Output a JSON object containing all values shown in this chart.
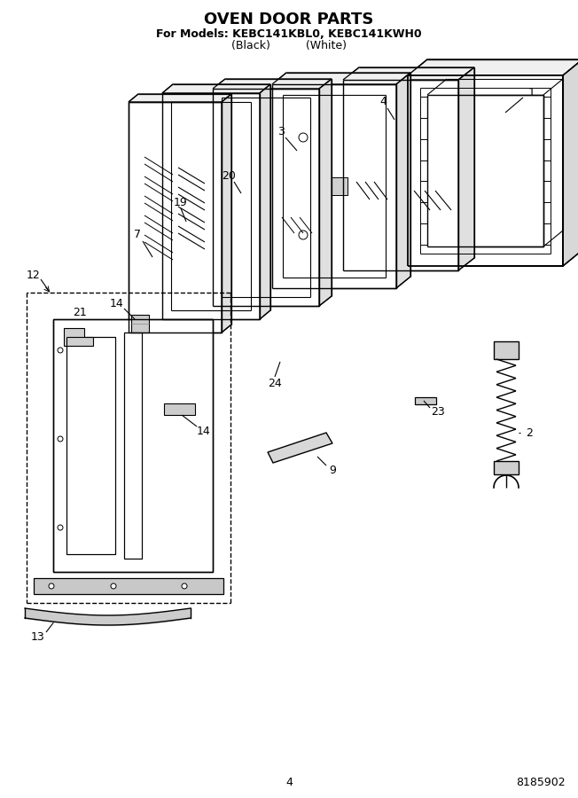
{
  "title": "OVEN DOOR PARTS",
  "subtitle1": "For Models: KEBC141KBL0, KEBC141KWH0",
  "subtitle2": "(Black)          (White)",
  "page_number": "4",
  "doc_number": "8185902",
  "bg_color": "#ffffff",
  "lc": "#000000"
}
